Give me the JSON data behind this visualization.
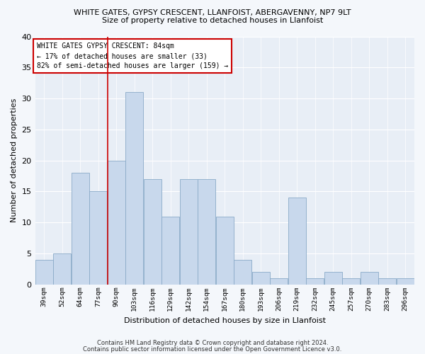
{
  "title1": "WHITE GATES, GYPSY CRESCENT, LLANFOIST, ABERGAVENNY, NP7 9LT",
  "title2": "Size of property relative to detached houses in Llanfoist",
  "xlabel": "Distribution of detached houses by size in Llanfoist",
  "ylabel": "Number of detached properties",
  "categories": [
    "39sqm",
    "52sqm",
    "64sqm",
    "77sqm",
    "90sqm",
    "103sqm",
    "116sqm",
    "129sqm",
    "142sqm",
    "154sqm",
    "167sqm",
    "180sqm",
    "193sqm",
    "206sqm",
    "219sqm",
    "232sqm",
    "245sqm",
    "257sqm",
    "270sqm",
    "283sqm",
    "296sqm"
  ],
  "values": [
    4,
    5,
    18,
    15,
    20,
    31,
    17,
    11,
    17,
    17,
    11,
    4,
    2,
    1,
    14,
    1,
    2,
    1,
    2,
    1,
    1
  ],
  "bar_color": "#c8d8ec",
  "bar_edge_color": "#8aaac8",
  "annotation_title": "WHITE GATES GYPSY CRESCENT: 84sqm",
  "annotation_line1": "← 17% of detached houses are smaller (33)",
  "annotation_line2": "82% of semi-detached houses are larger (159) →",
  "annotation_box_color": "#ffffff",
  "annotation_box_edge": "#cc0000",
  "redline_color": "#cc0000",
  "ylim": [
    0,
    40
  ],
  "yticks": [
    0,
    5,
    10,
    15,
    20,
    25,
    30,
    35,
    40
  ],
  "footer1": "Contains HM Land Registry data © Crown copyright and database right 2024.",
  "footer2": "Contains public sector information licensed under the Open Government Licence v3.0.",
  "bg_color": "#f4f7fb",
  "plot_bg_color": "#e8eef6"
}
